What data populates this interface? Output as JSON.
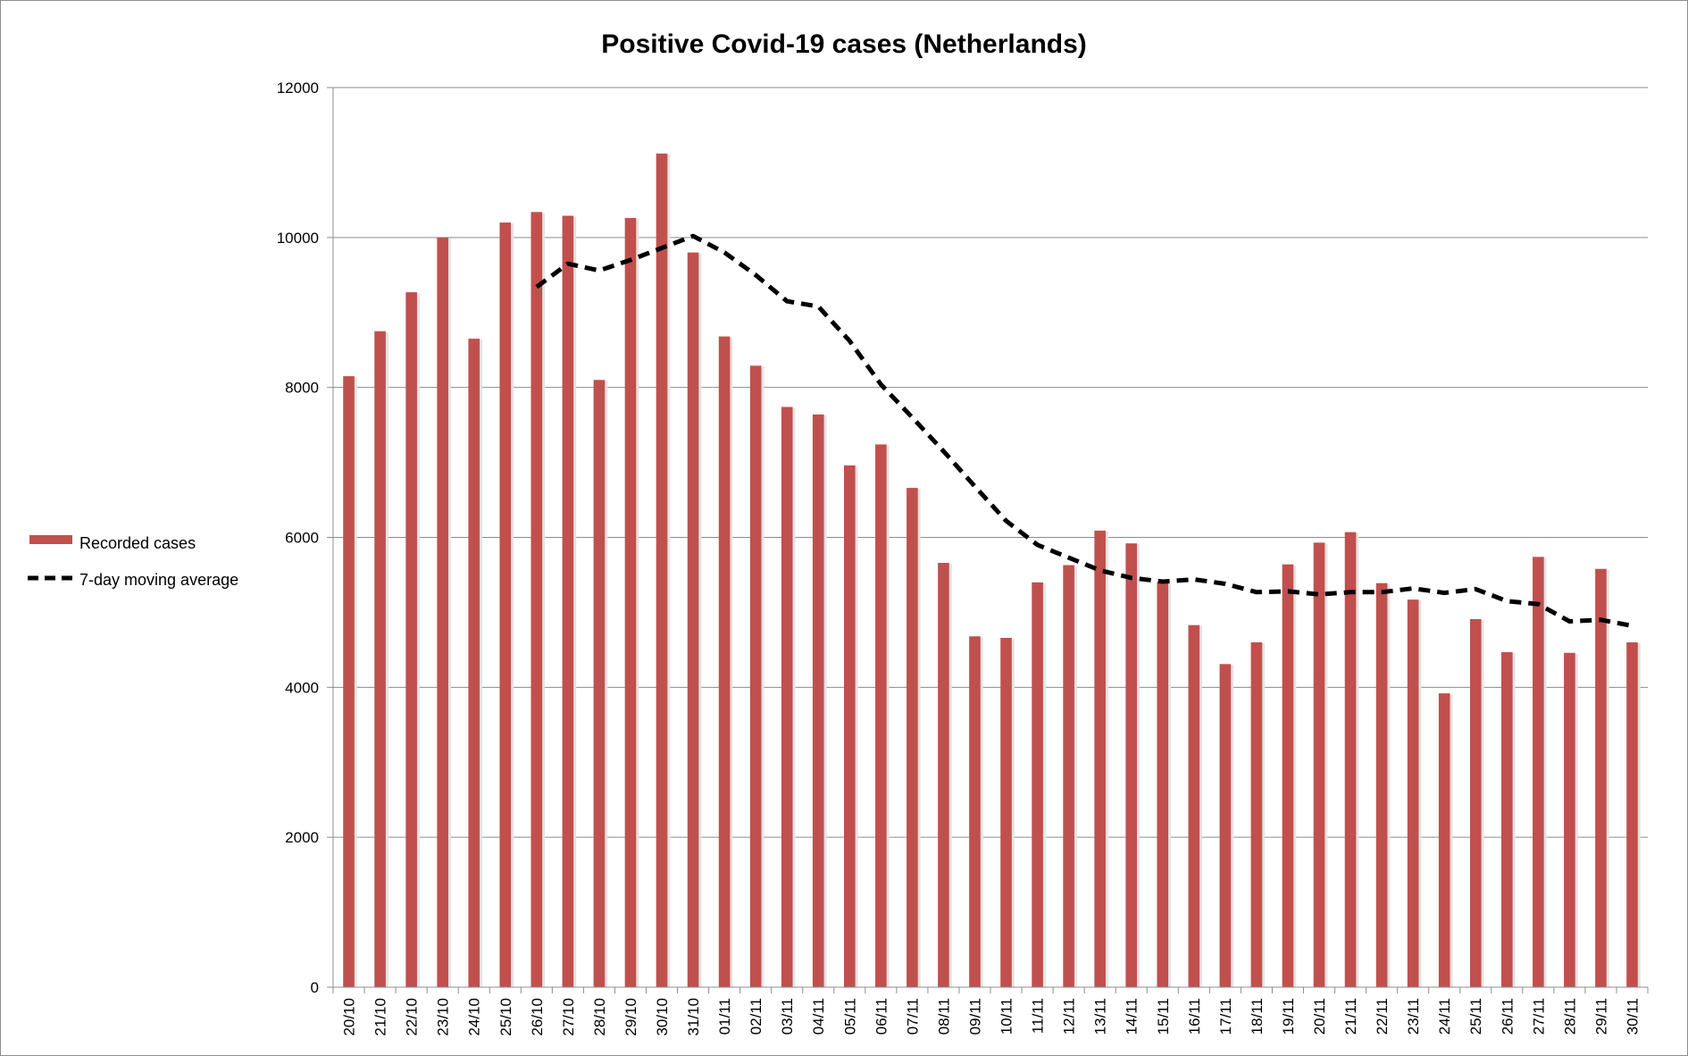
{
  "chart_data": {
    "type": "bar",
    "title": "Positive Covid-19 cases (Netherlands)",
    "xlabel": "",
    "ylabel": "",
    "ylim": [
      0,
      12000
    ],
    "yticks": [
      "0",
      "2000",
      "4000",
      "6000",
      "8000",
      "10000",
      "12000"
    ],
    "grid": true,
    "legend_position": "left",
    "categories": [
      "20/10",
      "21/10",
      "22/10",
      "23/10",
      "24/10",
      "25/10",
      "26/10",
      "27/10",
      "28/10",
      "29/10",
      "30/10",
      "31/10",
      "01/11",
      "02/11",
      "03/11",
      "04/11",
      "05/11",
      "06/11",
      "07/11",
      "08/11",
      "09/11",
      "10/11",
      "11/11",
      "12/11",
      "13/11",
      "14/11",
      "15/11",
      "16/11",
      "17/11",
      "18/11",
      "19/11",
      "20/11",
      "21/11",
      "22/11",
      "23/11",
      "24/11",
      "25/11",
      "26/11",
      "27/11",
      "28/11",
      "29/11",
      "30/11"
    ],
    "series": [
      {
        "name": "Recorded cases",
        "type": "bar",
        "color": "#c0504d",
        "values": [
          8150,
          8750,
          9270,
          10000,
          8650,
          10200,
          10340,
          10290,
          8100,
          10260,
          11120,
          9800,
          8680,
          8290,
          7740,
          7640,
          6960,
          7240,
          6660,
          5660,
          4680,
          4660,
          5400,
          5630,
          6090,
          5920,
          5400,
          4830,
          4310,
          4600,
          5640,
          5930,
          6070,
          5390,
          5170,
          3920,
          4910,
          4470,
          5740,
          4460,
          5580,
          4600
        ]
      },
      {
        "name": "7-day moving average",
        "type": "line",
        "style": "dashed",
        "color": "#000000",
        "values": [
          null,
          null,
          null,
          null,
          null,
          null,
          9340,
          9650,
          9560,
          9700,
          9860,
          10020,
          9800,
          9500,
          9150,
          9080,
          8620,
          8040,
          7600,
          7150,
          6680,
          6220,
          5900,
          5730,
          5560,
          5460,
          5410,
          5440,
          5380,
          5270,
          5280,
          5240,
          5270,
          5270,
          5320,
          5260,
          5310,
          5150,
          5110,
          4880,
          4900,
          4820
        ]
      }
    ]
  }
}
